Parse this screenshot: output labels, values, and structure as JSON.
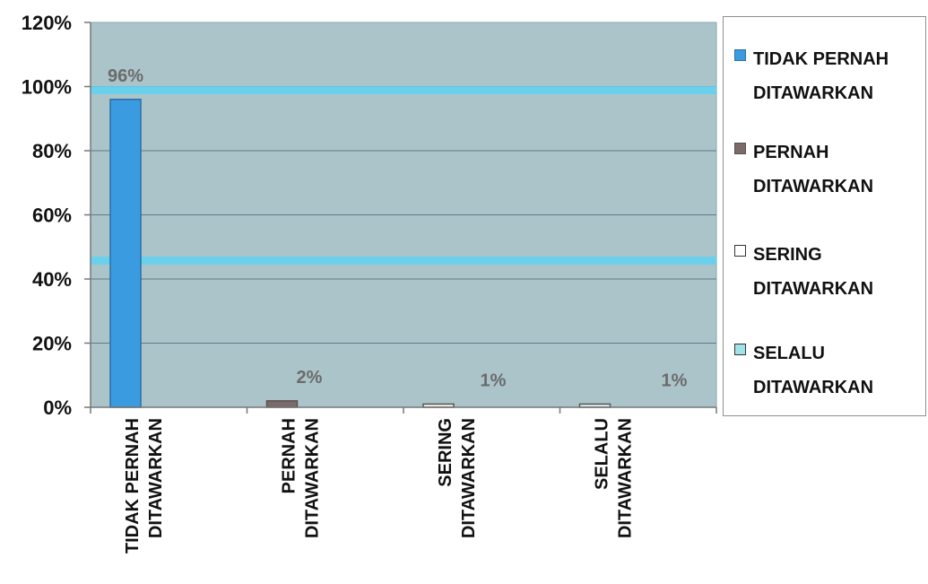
{
  "chart_data": {
    "type": "bar",
    "title": "",
    "xlabel": "",
    "ylabel": "",
    "categories": [
      [
        "TIDAK PERNAH",
        "DITAWARKAN"
      ],
      [
        "PERNAH",
        "DITAWARKAN"
      ],
      [
        "SERING",
        "DITAWARKAN"
      ],
      [
        "SELALU",
        "DITAWARKAN"
      ]
    ],
    "values": [
      96,
      2,
      1,
      1
    ],
    "data_labels": [
      "96%",
      "2%",
      "1%",
      "1%"
    ],
    "ylim": [
      0,
      120
    ],
    "yticks": [
      "0%",
      "20%",
      "40%",
      "60%",
      "80%",
      "100%",
      "120%"
    ],
    "grid": true,
    "legend_position": "right",
    "colors": {
      "plot_background": "#abc4c9",
      "gridline": "#5e7d84",
      "highlight_band": "#5fd2f2",
      "bars": [
        "#3a9be0",
        "#7a6a6a",
        "#f6f3ea",
        "#e2f0ee"
      ]
    }
  },
  "legend": {
    "items": [
      {
        "line1": "TIDAK PERNAH",
        "line2": "DITAWARKAN",
        "color": "#3a9be0",
        "icon": "blue-square-swatch"
      },
      {
        "line1": "PERNAH",
        "line2": "DITAWARKAN",
        "color": "#7a6a6a",
        "icon": "gray-square-swatch"
      },
      {
        "line1": "SERING",
        "line2": "DITAWARKAN",
        "color": "#ffffff",
        "icon": "white-square-swatch"
      },
      {
        "line1": "SELALU",
        "line2": "DITAWARKAN",
        "color": "#9fe3e8",
        "icon": "light-cyan-square-swatch"
      }
    ]
  }
}
